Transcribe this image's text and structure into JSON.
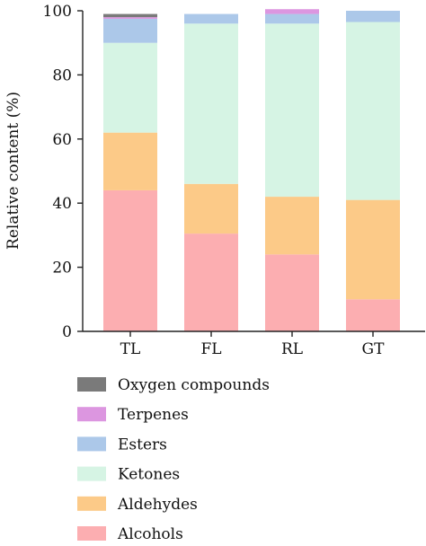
{
  "chart_data": {
    "type": "bar",
    "stacked": true,
    "categories": [
      "TL",
      "FL",
      "RL",
      "GT"
    ],
    "series": [
      {
        "name": "Alcohols",
        "color": "#fcaeb1",
        "values": [
          44.0,
          30.5,
          24.0,
          10.0
        ]
      },
      {
        "name": "Aldehydes",
        "color": "#fcca88",
        "values": [
          18.0,
          15.5,
          18.0,
          31.0
        ]
      },
      {
        "name": "Ketones",
        "color": "#d6f4e4",
        "values": [
          28.0,
          50.0,
          54.0,
          55.5
        ]
      },
      {
        "name": "Esters",
        "color": "#acc8e9",
        "values": [
          7.5,
          3.0,
          3.0,
          3.5
        ]
      },
      {
        "name": "Terpenes",
        "color": "#dc96e0",
        "values": [
          0.5,
          0.0,
          1.5,
          0.0
        ]
      },
      {
        "name": "Oxygen compounds",
        "color": "#7a7a7a",
        "values": [
          1.0,
          0.0,
          0.0,
          0.0
        ]
      }
    ],
    "legend_order": [
      "Oxygen compounds",
      "Terpenes",
      "Esters",
      "Ketones",
      "Aldehydes",
      "Alcohols"
    ],
    "xlabel": "",
    "ylabel": "Relative content (%)",
    "yticks": [
      0,
      20,
      40,
      60,
      80,
      100
    ],
    "ylim": [
      0,
      100
    ],
    "grid": false,
    "legend_position": "bottom"
  }
}
